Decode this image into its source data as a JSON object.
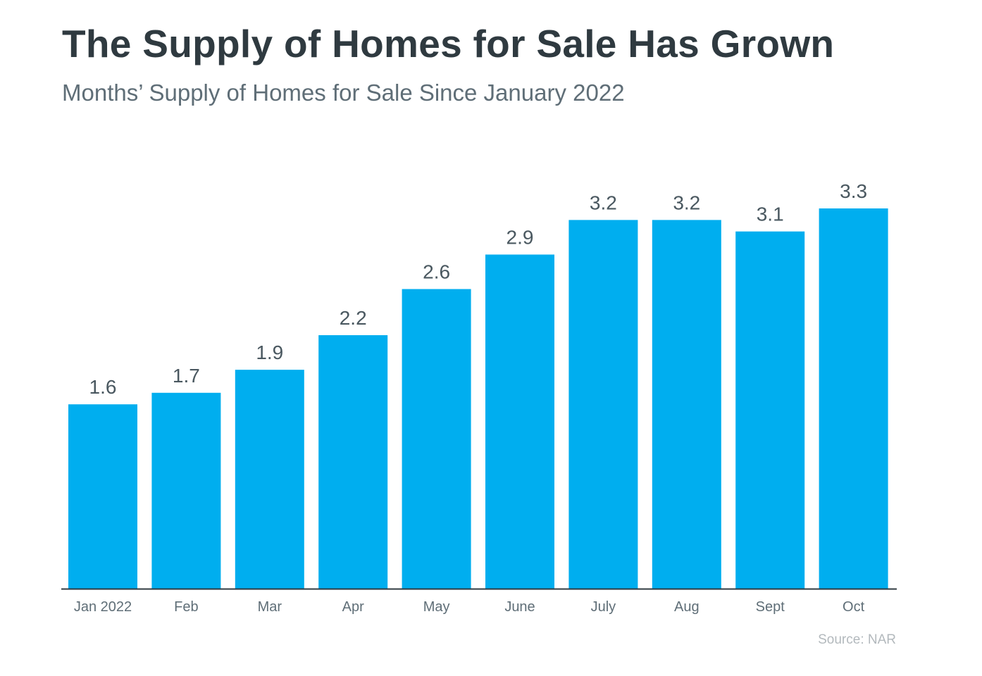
{
  "title": "The Supply of Homes for Sale Has Grown",
  "subtitle": "Months’ Supply of Homes for Sale Since January 2022",
  "source": "Source: NAR",
  "colors": {
    "bar": "#00aeef",
    "axis": "#2f3a40",
    "value_label": "#4a5860",
    "tick_label": "#5f6e77"
  },
  "chart_data": {
    "type": "bar",
    "title": "The Supply of Homes for Sale Has Grown",
    "subtitle": "Months’ Supply of Homes for Sale Since January 2022",
    "categories": [
      "Jan 2022",
      "Feb",
      "Mar",
      "Apr",
      "May",
      "June",
      "July",
      "Aug",
      "Sept",
      "Oct"
    ],
    "values": [
      1.6,
      1.7,
      1.9,
      2.2,
      2.6,
      2.9,
      3.2,
      3.2,
      3.1,
      3.3
    ],
    "value_labels": [
      "1.6",
      "1.7",
      "1.9",
      "2.2",
      "2.6",
      "2.9",
      "3.2",
      "3.2",
      "3.1",
      "3.3"
    ],
    "xlabel": "",
    "ylabel": "",
    "ylim": [
      0,
      3.3
    ],
    "grid": false,
    "legend": "none"
  }
}
